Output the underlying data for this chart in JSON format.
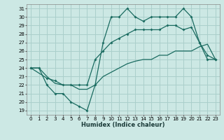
{
  "background_color": "#cce8e4",
  "grid_color": "#aacfcb",
  "line_color": "#1a6b60",
  "xlabel": "Humidex (Indice chaleur)",
  "xlim": [
    -0.5,
    23.5
  ],
  "ylim": [
    18.5,
    31.5
  ],
  "yticks": [
    19,
    20,
    21,
    22,
    23,
    24,
    25,
    26,
    27,
    28,
    29,
    30,
    31
  ],
  "xticks": [
    0,
    1,
    2,
    3,
    4,
    5,
    6,
    7,
    8,
    9,
    10,
    11,
    12,
    13,
    14,
    15,
    16,
    17,
    18,
    19,
    20,
    21,
    22,
    23
  ],
  "line1_x": [
    0,
    1,
    2,
    3,
    4,
    5,
    6,
    7,
    8,
    9,
    10,
    11,
    12,
    13,
    14,
    15,
    16,
    17,
    18,
    19,
    20,
    21,
    22,
    23
  ],
  "line1_y": [
    24,
    24,
    22,
    21,
    21,
    20,
    19.5,
    19,
    22,
    27,
    30,
    30,
    31,
    30,
    29.5,
    30,
    30,
    30,
    30,
    31,
    30,
    27,
    25,
    25
  ],
  "line2_x": [
    0,
    2,
    3,
    4,
    5,
    6,
    7,
    8,
    9,
    10,
    11,
    12,
    13,
    14,
    15,
    16,
    17,
    18,
    19,
    20,
    21,
    22,
    23
  ],
  "line2_y": [
    24,
    22.8,
    22.5,
    22,
    22,
    22,
    22,
    25,
    26,
    27,
    27.5,
    28,
    28.5,
    28.5,
    28.5,
    28.5,
    29,
    29,
    28.5,
    28.8,
    27,
    25.5,
    25
  ],
  "line3_x": [
    0,
    1,
    2,
    3,
    4,
    5,
    6,
    7,
    8,
    9,
    10,
    11,
    12,
    13,
    14,
    15,
    16,
    17,
    18,
    19,
    20,
    21,
    22,
    23
  ],
  "line3_y": [
    24,
    24,
    23,
    22.2,
    22,
    22,
    21.5,
    21.5,
    22,
    23,
    23.5,
    24,
    24.5,
    24.8,
    25,
    25,
    25.5,
    25.5,
    26,
    26,
    26,
    26.5,
    26.8,
    25
  ]
}
